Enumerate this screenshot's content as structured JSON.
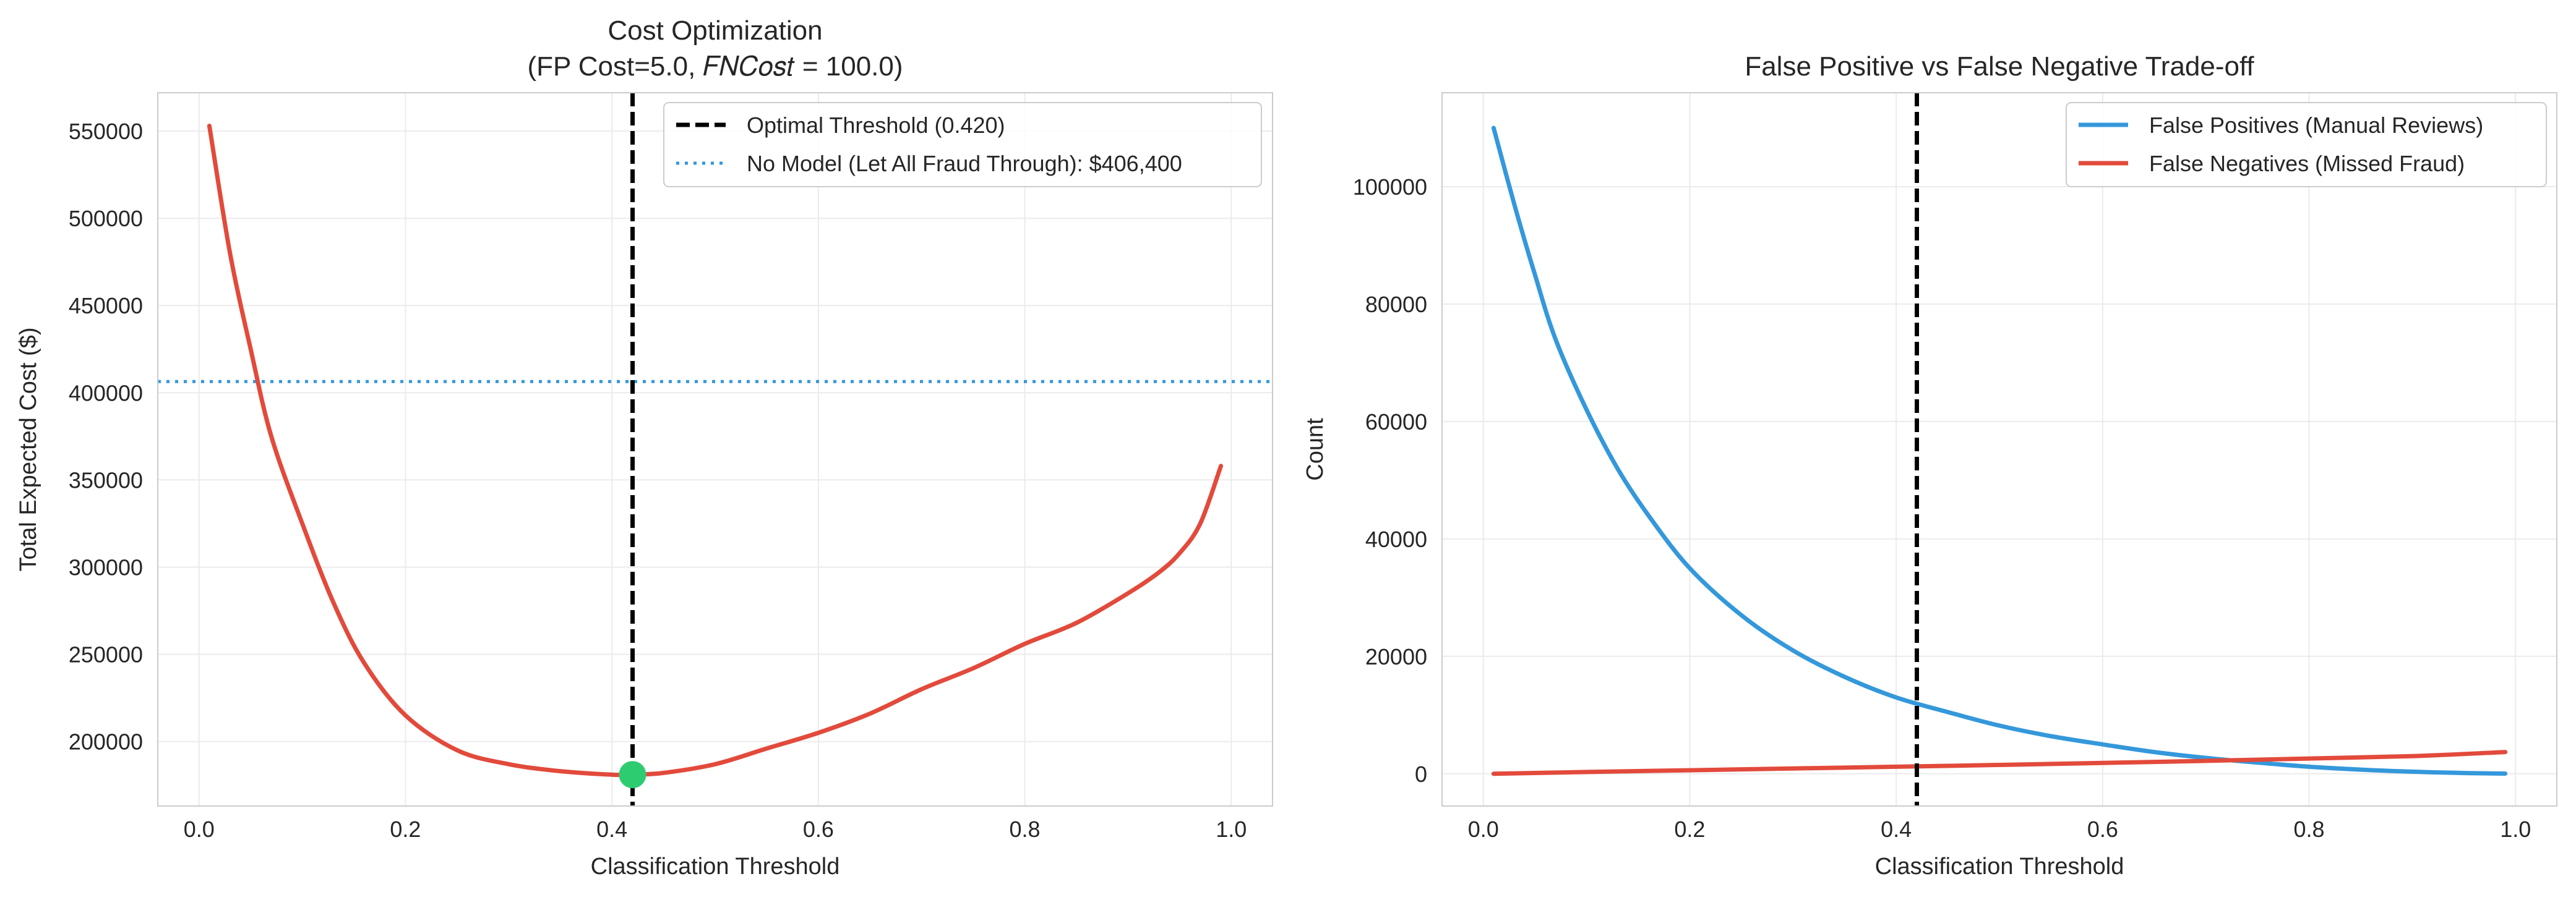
{
  "figure_colors": {
    "cost_curve": "#e24a3b",
    "no_model_line": "#3498db",
    "optimal_line": "#000000",
    "optimal_marker": "#2ecc71",
    "false_positives": "#3498db",
    "false_negatives": "#e24a3b"
  },
  "chart_data": [
    {
      "type": "line",
      "title_line1": "Cost Optimization",
      "title_line2": "(FP Cost=5.0, 𝐹𝑁𝐶𝑜𝑠𝑡 = 100.0)",
      "xlabel": "Classification Threshold",
      "ylabel": "Total Expected Cost ($)",
      "xlim": [
        -0.04,
        1.04
      ],
      "ylim": [
        163000,
        572000
      ],
      "xticks": [
        0.0,
        0.2,
        0.4,
        0.6,
        0.8,
        1.0
      ],
      "xtick_labels": [
        "0.0",
        "0.2",
        "0.4",
        "0.6",
        "0.8",
        "1.0"
      ],
      "yticks": [
        200000,
        250000,
        300000,
        350000,
        400000,
        450000,
        500000,
        550000
      ],
      "ytick_labels": [
        "200000",
        "250000",
        "300000",
        "350000",
        "400000",
        "450000",
        "500000",
        "550000"
      ],
      "grid": true,
      "legend_position": "top-right",
      "series": [
        {
          "name": "Total Expected Cost",
          "x": [
            0.01,
            0.03,
            0.05,
            0.07,
            0.1,
            0.13,
            0.16,
            0.2,
            0.25,
            0.3,
            0.35,
            0.4,
            0.42,
            0.45,
            0.5,
            0.55,
            0.6,
            0.65,
            0.7,
            0.75,
            0.8,
            0.85,
            0.9,
            0.93,
            0.95,
            0.97,
            0.99
          ],
          "y": [
            553000,
            480000,
            425000,
            375000,
            325000,
            280000,
            245000,
            215000,
            195000,
            187000,
            183000,
            181000,
            181000,
            182000,
            187000,
            196000,
            205000,
            216000,
            230000,
            242000,
            256000,
            268000,
            285000,
            297000,
            308000,
            325000,
            358000
          ]
        }
      ],
      "optimal_threshold": 0.42,
      "optimal_cost": 181000,
      "no_model_cost": 406400,
      "legend": [
        {
          "label": "Optimal Threshold (0.420)",
          "style": "dashed"
        },
        {
          "label": "No Model (Let All Fraud Through): $406,400",
          "style": "dotted"
        }
      ]
    },
    {
      "type": "line",
      "title": "False Positive vs False Negative Trade-off",
      "xlabel": "Classification Threshold",
      "ylabel": "Count",
      "xlim": [
        -0.04,
        1.04
      ],
      "ylim": [
        -5500,
        116000
      ],
      "xticks": [
        0.0,
        0.2,
        0.4,
        0.6,
        0.8,
        1.0
      ],
      "xtick_labels": [
        "0.0",
        "0.2",
        "0.4",
        "0.6",
        "0.8",
        "1.0"
      ],
      "yticks": [
        0,
        20000,
        40000,
        60000,
        80000,
        100000
      ],
      "ytick_labels": [
        "0",
        "20000",
        "40000",
        "60000",
        "80000",
        "100000"
      ],
      "grid": true,
      "legend_position": "top-right",
      "optimal_threshold": 0.42,
      "series": [
        {
          "name": "False Positives (Manual Reviews)",
          "x": [
            0.01,
            0.03,
            0.05,
            0.07,
            0.1,
            0.13,
            0.16,
            0.2,
            0.25,
            0.3,
            0.35,
            0.4,
            0.45,
            0.5,
            0.55,
            0.6,
            0.65,
            0.7,
            0.75,
            0.8,
            0.85,
            0.9,
            0.95,
            0.99
          ],
          "y": [
            110000,
            97000,
            85000,
            74000,
            62000,
            52000,
            44000,
            35000,
            27000,
            21000,
            16500,
            13000,
            10500,
            8200,
            6400,
            5000,
            3700,
            2700,
            1900,
            1200,
            700,
            350,
            120,
            30
          ]
        },
        {
          "name": "False Negatives (Missed Fraud)",
          "x": [
            0.01,
            0.1,
            0.2,
            0.3,
            0.4,
            0.5,
            0.6,
            0.7,
            0.8,
            0.9,
            0.99
          ],
          "y": [
            0,
            300,
            600,
            900,
            1200,
            1500,
            1850,
            2200,
            2600,
            3000,
            3700
          ]
        }
      ]
    }
  ]
}
